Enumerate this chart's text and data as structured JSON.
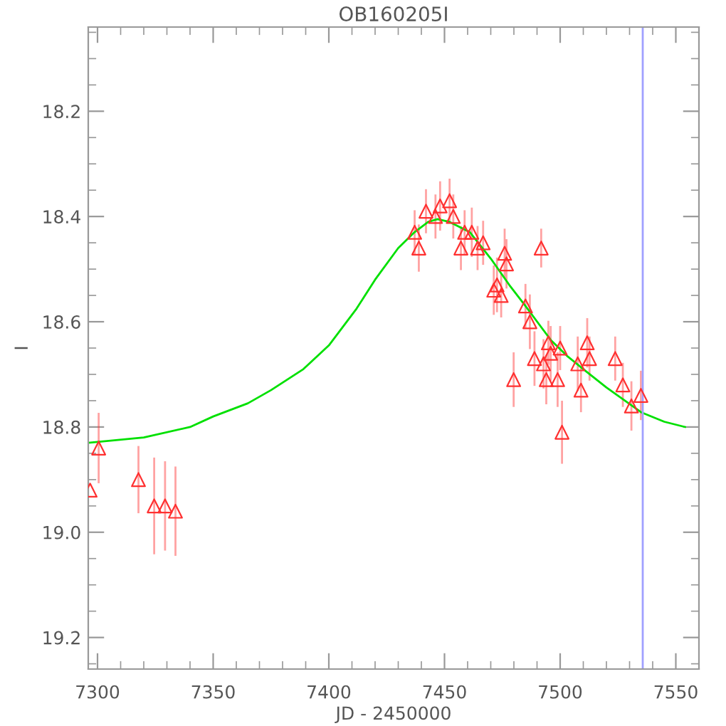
{
  "chart_data": {
    "type": "scatter",
    "title": "OB160205I",
    "xlabel": "JD - 2450000",
    "ylabel": "I",
    "xlim": [
      7296,
      7560
    ],
    "ylim": [
      19.26,
      18.04
    ],
    "xticks": [
      7300,
      7350,
      7400,
      7450,
      7500,
      7550
    ],
    "yticks": [
      {
        "value": 18.2,
        "label": "18.2"
      },
      {
        "value": 18.4,
        "label": "18.4"
      },
      {
        "value": 18.6,
        "label": "18.6"
      },
      {
        "value": 18.8,
        "label": "18.8"
      },
      {
        "value": 19.0,
        "label": "19.0"
      },
      {
        "value": 19.2,
        "label": "19.2"
      }
    ],
    "grid": false,
    "legend": false,
    "series": [
      {
        "marker": "triangle",
        "color": "#ff3030",
        "x": [
          7296.8,
          7300.5,
          7317.7,
          7324.5,
          7329.2,
          7333.7,
          7437.1,
          7438.9,
          7442.0,
          7446.1,
          7448.1,
          7452.2,
          7453.8,
          7457.1,
          7458.7,
          7461.8,
          7464.3,
          7466.7,
          7471.3,
          7472.7,
          7474.5,
          7476.0,
          7476.8,
          7479.9,
          7485.0,
          7486.9,
          7488.9,
          7491.8,
          7492.8,
          7494.0,
          7494.9,
          7495.9,
          7498.9,
          7500.0,
          7500.8,
          7507.6,
          7509.0,
          7511.7,
          7512.7,
          7523.8,
          7527.1,
          7530.8,
          7534.9
        ],
        "values": [
          18.92,
          18.84,
          18.9,
          18.95,
          18.95,
          18.96,
          18.43,
          18.46,
          18.39,
          18.4,
          18.38,
          18.37,
          18.4,
          18.46,
          18.43,
          18.43,
          18.46,
          18.45,
          18.54,
          18.53,
          18.55,
          18.47,
          18.49,
          18.71,
          18.57,
          18.6,
          18.67,
          18.46,
          18.68,
          18.71,
          18.64,
          18.66,
          18.71,
          18.65,
          18.81,
          18.68,
          18.73,
          18.64,
          18.67,
          18.67,
          18.72,
          18.76,
          18.74
        ],
        "errors": [
          null,
          0.065,
          0.062,
          0.09,
          0.083,
          0.083,
          0.04,
          0.043,
          0.04,
          0.04,
          0.045,
          0.04,
          0.04,
          0.04,
          0.04,
          0.045,
          0.04,
          0.04,
          0.045,
          0.05,
          0.04,
          0.045,
          0.045,
          0.05,
          0.04,
          0.05,
          0.05,
          0.035,
          0.045,
          0.045,
          0.04,
          0.05,
          0.05,
          0.04,
          0.058,
          0.05,
          0.04,
          0.045,
          0.04,
          0.04,
          0.04,
          0.045,
          0.045
        ]
      },
      {
        "type": "line",
        "color": "#00e000",
        "marker": "none",
        "x": [
          7296,
          7320,
          7340,
          7350,
          7365,
          7375,
          7389,
          7400,
          7412,
          7420,
          7430,
          7437,
          7443,
          7447,
          7452,
          7461,
          7470,
          7478,
          7485,
          7496,
          7503,
          7510,
          7520,
          7535,
          7545,
          7554
        ],
        "values": [
          18.83,
          18.82,
          18.8,
          18.78,
          18.755,
          18.73,
          18.69,
          18.645,
          18.575,
          18.52,
          18.46,
          18.43,
          18.41,
          18.405,
          18.41,
          18.43,
          18.48,
          18.53,
          18.57,
          18.635,
          18.665,
          18.69,
          18.725,
          18.772,
          18.79,
          18.8
        ]
      }
    ],
    "ref_lines": [
      {
        "axis": "x",
        "value": 7535.7,
        "color": "#a0a0ff"
      }
    ]
  }
}
